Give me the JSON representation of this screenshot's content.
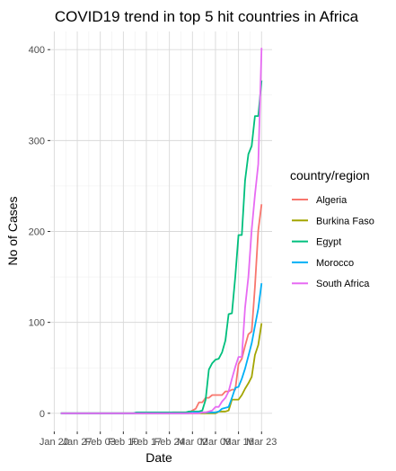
{
  "chart_data": {
    "type": "line",
    "title": "COVID19 trend in top 5 hit countries in Africa",
    "xlabel": "Date",
    "ylabel": "No of Cases",
    "x_ticks": [
      "Jan 20",
      "Jan 27",
      "Feb 03",
      "Feb 10",
      "Feb 17",
      "Feb 24",
      "Mar 02",
      "Mar 09",
      "Mar 16",
      "Mar 23"
    ],
    "x_range": [
      "2020-01-20",
      "2020-03-23"
    ],
    "ylim": [
      0,
      420
    ],
    "y_ticks": [
      0,
      100,
      200,
      300,
      400
    ],
    "grid": true,
    "legend": {
      "title": "country/region",
      "position": "right"
    },
    "series": [
      {
        "name": "Algeria",
        "color": "#F8766D",
        "points": [
          [
            "2020-01-22",
            0
          ],
          [
            "2020-02-24",
            0
          ],
          [
            "2020-02-25",
            1
          ],
          [
            "2020-03-02",
            3
          ],
          [
            "2020-03-03",
            5
          ],
          [
            "2020-03-04",
            12
          ],
          [
            "2020-03-06",
            17
          ],
          [
            "2020-03-08",
            20
          ],
          [
            "2020-03-12",
            24
          ],
          [
            "2020-03-14",
            26
          ],
          [
            "2020-03-16",
            54
          ],
          [
            "2020-03-17",
            60
          ],
          [
            "2020-03-18",
            74
          ],
          [
            "2020-03-19",
            87
          ],
          [
            "2020-03-20",
            90
          ],
          [
            "2020-03-21",
            139
          ],
          [
            "2020-03-22",
            201
          ],
          [
            "2020-03-23",
            230
          ]
        ]
      },
      {
        "name": "Burkina Faso",
        "color": "#A3A500",
        "points": [
          [
            "2020-01-22",
            0
          ],
          [
            "2020-03-09",
            0
          ],
          [
            "2020-03-10",
            2
          ],
          [
            "2020-03-13",
            3
          ],
          [
            "2020-03-14",
            15
          ],
          [
            "2020-03-16",
            15
          ],
          [
            "2020-03-17",
            20
          ],
          [
            "2020-03-18",
            27
          ],
          [
            "2020-03-19",
            33
          ],
          [
            "2020-03-20",
            40
          ],
          [
            "2020-03-21",
            64
          ],
          [
            "2020-03-22",
            75
          ],
          [
            "2020-03-23",
            99
          ]
        ]
      },
      {
        "name": "Egypt",
        "color": "#00BF7D",
        "points": [
          [
            "2020-01-22",
            0
          ],
          [
            "2020-02-13",
            0
          ],
          [
            "2020-02-14",
            1
          ],
          [
            "2020-02-29",
            1
          ],
          [
            "2020-03-01",
            2
          ],
          [
            "2020-03-05",
            3
          ],
          [
            "2020-03-06",
            15
          ],
          [
            "2020-03-07",
            48
          ],
          [
            "2020-03-08",
            55
          ],
          [
            "2020-03-09",
            59
          ],
          [
            "2020-03-10",
            60
          ],
          [
            "2020-03-11",
            67
          ],
          [
            "2020-03-12",
            80
          ],
          [
            "2020-03-13",
            109
          ],
          [
            "2020-03-14",
            110
          ],
          [
            "2020-03-15",
            150
          ],
          [
            "2020-03-16",
            196
          ],
          [
            "2020-03-17",
            196
          ],
          [
            "2020-03-18",
            256
          ],
          [
            "2020-03-19",
            285
          ],
          [
            "2020-03-20",
            294
          ],
          [
            "2020-03-21",
            327
          ],
          [
            "2020-03-22",
            327
          ],
          [
            "2020-03-23",
            366
          ]
        ]
      },
      {
        "name": "Morocco",
        "color": "#00B0F6",
        "points": [
          [
            "2020-01-22",
            0
          ],
          [
            "2020-03-01",
            0
          ],
          [
            "2020-03-02",
            1
          ],
          [
            "2020-03-09",
            1
          ],
          [
            "2020-03-10",
            2
          ],
          [
            "2020-03-11",
            5
          ],
          [
            "2020-03-12",
            6
          ],
          [
            "2020-03-13",
            7
          ],
          [
            "2020-03-14",
            17
          ],
          [
            "2020-03-15",
            28
          ],
          [
            "2020-03-16",
            29
          ],
          [
            "2020-03-17",
            38
          ],
          [
            "2020-03-18",
            49
          ],
          [
            "2020-03-19",
            63
          ],
          [
            "2020-03-20",
            77
          ],
          [
            "2020-03-21",
            96
          ],
          [
            "2020-03-22",
            115
          ],
          [
            "2020-03-23",
            143
          ]
        ]
      },
      {
        "name": "South Africa",
        "color": "#E76BF3",
        "points": [
          [
            "2020-01-22",
            0
          ],
          [
            "2020-03-04",
            0
          ],
          [
            "2020-03-05",
            1
          ],
          [
            "2020-03-07",
            2
          ],
          [
            "2020-03-08",
            3
          ],
          [
            "2020-03-09",
            7
          ],
          [
            "2020-03-11",
            13
          ],
          [
            "2020-03-12",
            17
          ],
          [
            "2020-03-13",
            24
          ],
          [
            "2020-03-14",
            38
          ],
          [
            "2020-03-15",
            51
          ],
          [
            "2020-03-16",
            62
          ],
          [
            "2020-03-17",
            62
          ],
          [
            "2020-03-18",
            116
          ],
          [
            "2020-03-19",
            150
          ],
          [
            "2020-03-20",
            202
          ],
          [
            "2020-03-21",
            240
          ],
          [
            "2020-03-22",
            274
          ],
          [
            "2020-03-23",
            402
          ]
        ]
      }
    ]
  }
}
